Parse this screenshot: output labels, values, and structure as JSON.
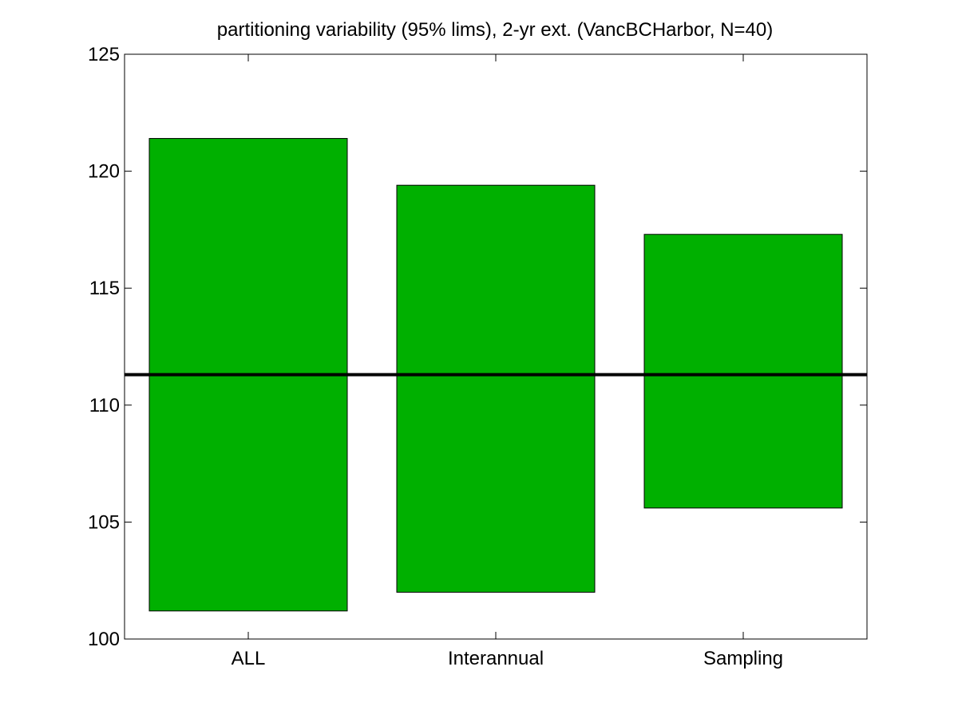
{
  "chart_data": {
    "type": "bar",
    "subtype": "floating-range",
    "title": "partitioning variability (95% lims), 2-yr ext. (VancBCHarbor, N=40)",
    "xlabel": "",
    "ylabel": "",
    "categories": [
      "ALL",
      "Interannual",
      "Sampling"
    ],
    "ranges": [
      {
        "category": "ALL",
        "low": 101.2,
        "high": 121.4
      },
      {
        "category": "Interannual",
        "low": 102.0,
        "high": 119.4
      },
      {
        "category": "Sampling",
        "low": 105.6,
        "high": 117.3
      }
    ],
    "reference_line": 111.3,
    "ylim": [
      100,
      125
    ],
    "yticks": [
      100,
      105,
      110,
      115,
      120,
      125
    ],
    "grid": false,
    "legend": "none",
    "colors": {
      "bar_fill": "#00b000",
      "bar_edge": "#000000",
      "reference_line": "#000000",
      "axes": "#000000"
    }
  }
}
